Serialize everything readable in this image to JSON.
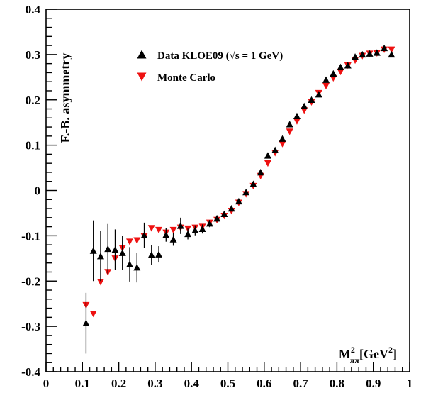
{
  "chart_data": {
    "type": "scatter",
    "ylabel": "F.-B. asymmetry",
    "xlabel": "M²ππ[GeV²]",
    "xlim": [
      0,
      1
    ],
    "ylim": [
      -0.4,
      0.4
    ],
    "xticks": [
      "0",
      "0.1",
      "0.2",
      "0.3",
      "0.4",
      "0.5",
      "0.6",
      "0.7",
      "0.8",
      "0.9",
      "1"
    ],
    "yticks": [
      "-0.4",
      "-0.3",
      "-0.2",
      "-0.1",
      "0",
      "0.1",
      "0.2",
      "0.3",
      "0.4"
    ],
    "legend_position": "top-left",
    "series": [
      {
        "name": "Data KLOE09 (√s = 1 GeV)",
        "marker": "triangle-up",
        "color": "#000000",
        "points": [
          {
            "x": 0.11,
            "y": -0.293,
            "err": 0.067
          },
          {
            "x": 0.13,
            "y": -0.133,
            "err": 0.067
          },
          {
            "x": 0.15,
            "y": -0.145,
            "err": 0.055
          },
          {
            "x": 0.17,
            "y": -0.129,
            "err": 0.055
          },
          {
            "x": 0.19,
            "y": -0.131,
            "err": 0.045
          },
          {
            "x": 0.21,
            "y": -0.138,
            "err": 0.038
          },
          {
            "x": 0.23,
            "y": -0.163,
            "err": 0.038
          },
          {
            "x": 0.25,
            "y": -0.17,
            "err": 0.033
          },
          {
            "x": 0.27,
            "y": -0.099,
            "err": 0.028
          },
          {
            "x": 0.29,
            "y": -0.142,
            "err": 0.022
          },
          {
            "x": 0.31,
            "y": -0.141,
            "err": 0.018
          },
          {
            "x": 0.33,
            "y": -0.098,
            "err": 0.015
          },
          {
            "x": 0.35,
            "y": -0.108,
            "err": 0.014
          },
          {
            "x": 0.37,
            "y": -0.078,
            "err": 0.018
          },
          {
            "x": 0.39,
            "y": -0.096,
            "err": 0.012
          },
          {
            "x": 0.41,
            "y": -0.088,
            "err": 0.011
          },
          {
            "x": 0.43,
            "y": -0.085,
            "err": 0.01
          },
          {
            "x": 0.45,
            "y": -0.073,
            "err": 0.008
          },
          {
            "x": 0.47,
            "y": -0.062,
            "err": 0.007
          },
          {
            "x": 0.49,
            "y": -0.052,
            "err": 0.006
          },
          {
            "x": 0.51,
            "y": -0.04,
            "err": 0.005
          },
          {
            "x": 0.53,
            "y": -0.024,
            "err": 0.005
          },
          {
            "x": 0.55,
            "y": -0.004,
            "err": 0.005
          },
          {
            "x": 0.57,
            "y": 0.014,
            "err": 0.005
          },
          {
            "x": 0.59,
            "y": 0.04,
            "err": 0.005
          },
          {
            "x": 0.61,
            "y": 0.077,
            "err": 0.005
          },
          {
            "x": 0.63,
            "y": 0.089,
            "err": 0.005
          },
          {
            "x": 0.65,
            "y": 0.114,
            "err": 0.005
          },
          {
            "x": 0.67,
            "y": 0.146,
            "err": 0.005
          },
          {
            "x": 0.69,
            "y": 0.164,
            "err": 0.005
          },
          {
            "x": 0.71,
            "y": 0.186,
            "err": 0.005
          },
          {
            "x": 0.73,
            "y": 0.2,
            "err": 0.005
          },
          {
            "x": 0.75,
            "y": 0.212,
            "err": 0.005
          },
          {
            "x": 0.77,
            "y": 0.244,
            "err": 0.005
          },
          {
            "x": 0.79,
            "y": 0.258,
            "err": 0.005
          },
          {
            "x": 0.81,
            "y": 0.272,
            "err": 0.005
          },
          {
            "x": 0.83,
            "y": 0.276,
            "err": 0.005
          },
          {
            "x": 0.85,
            "y": 0.295,
            "err": 0.005
          },
          {
            "x": 0.87,
            "y": 0.3,
            "err": 0.005
          },
          {
            "x": 0.89,
            "y": 0.302,
            "err": 0.005
          },
          {
            "x": 0.91,
            "y": 0.304,
            "err": 0.005
          },
          {
            "x": 0.93,
            "y": 0.314,
            "err": 0.005
          },
          {
            "x": 0.95,
            "y": 0.3,
            "err": 0.005
          }
        ]
      },
      {
        "name": "Monte Carlo",
        "marker": "triangle-down",
        "color": "#ee1111",
        "points": [
          {
            "x": 0.11,
            "y": -0.253
          },
          {
            "x": 0.13,
            "y": -0.272
          },
          {
            "x": 0.15,
            "y": -0.202
          },
          {
            "x": 0.17,
            "y": -0.18
          },
          {
            "x": 0.19,
            "y": -0.15
          },
          {
            "x": 0.21,
            "y": -0.127
          },
          {
            "x": 0.23,
            "y": -0.113
          },
          {
            "x": 0.25,
            "y": -0.11
          },
          {
            "x": 0.27,
            "y": -0.101
          },
          {
            "x": 0.29,
            "y": -0.083
          },
          {
            "x": 0.31,
            "y": -0.087
          },
          {
            "x": 0.33,
            "y": -0.093
          },
          {
            "x": 0.35,
            "y": -0.087
          },
          {
            "x": 0.37,
            "y": -0.082
          },
          {
            "x": 0.39,
            "y": -0.084
          },
          {
            "x": 0.41,
            "y": -0.082
          },
          {
            "x": 0.43,
            "y": -0.08
          },
          {
            "x": 0.45,
            "y": -0.071
          },
          {
            "x": 0.47,
            "y": -0.065
          },
          {
            "x": 0.49,
            "y": -0.056
          },
          {
            "x": 0.51,
            "y": -0.045
          },
          {
            "x": 0.53,
            "y": -0.027
          },
          {
            "x": 0.55,
            "y": -0.008
          },
          {
            "x": 0.57,
            "y": 0.01
          },
          {
            "x": 0.59,
            "y": 0.032
          },
          {
            "x": 0.61,
            "y": 0.06
          },
          {
            "x": 0.63,
            "y": 0.083
          },
          {
            "x": 0.65,
            "y": 0.103
          },
          {
            "x": 0.67,
            "y": 0.13
          },
          {
            "x": 0.69,
            "y": 0.153
          },
          {
            "x": 0.71,
            "y": 0.177
          },
          {
            "x": 0.73,
            "y": 0.195
          },
          {
            "x": 0.75,
            "y": 0.215
          },
          {
            "x": 0.77,
            "y": 0.231
          },
          {
            "x": 0.79,
            "y": 0.248
          },
          {
            "x": 0.81,
            "y": 0.262
          },
          {
            "x": 0.83,
            "y": 0.276
          },
          {
            "x": 0.85,
            "y": 0.287
          },
          {
            "x": 0.87,
            "y": 0.297
          },
          {
            "x": 0.89,
            "y": 0.302
          },
          {
            "x": 0.91,
            "y": 0.303
          },
          {
            "x": 0.93,
            "y": 0.311
          },
          {
            "x": 0.95,
            "y": 0.311
          }
        ]
      }
    ]
  }
}
